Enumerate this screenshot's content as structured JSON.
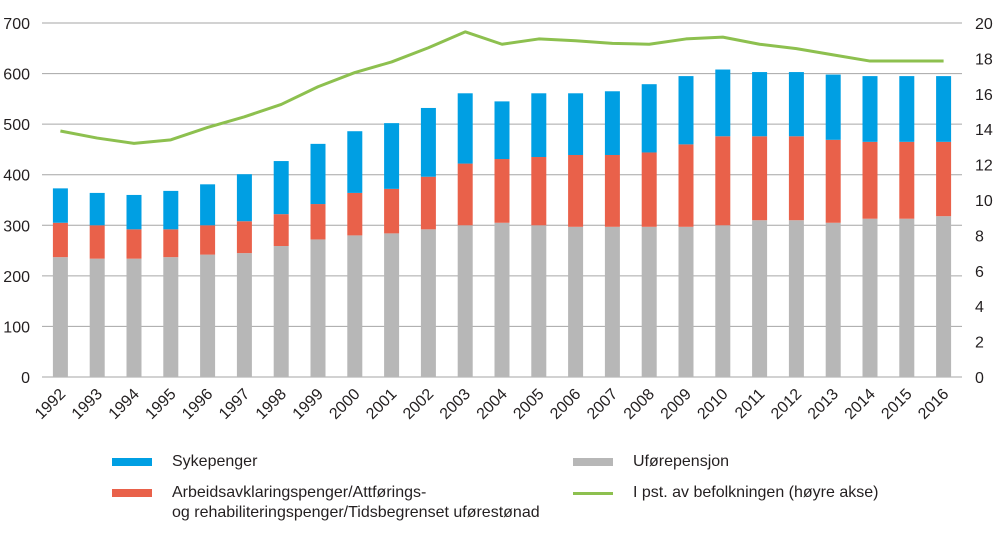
{
  "chart_data": {
    "type": "bar",
    "stacked": true,
    "title": "",
    "xlabel": "",
    "ylabel": "",
    "y2label": "",
    "categories": [
      "1992",
      "1993",
      "1994",
      "1995",
      "1996",
      "1997",
      "1998",
      "1999",
      "2000",
      "2001",
      "2002",
      "2003",
      "2004",
      "2005",
      "2006",
      "2007",
      "2008",
      "2009",
      "2010",
      "2011",
      "2012",
      "2013",
      "2014",
      "2015",
      "2016"
    ],
    "ylim": [
      0,
      700
    ],
    "yticks": [
      0,
      100,
      200,
      300,
      400,
      500,
      600,
      700
    ],
    "y2lim": [
      0,
      20
    ],
    "y2ticks": [
      0,
      2,
      4,
      6,
      8,
      10,
      12,
      14,
      16,
      18,
      20
    ],
    "grid": true,
    "legend_position": "bottom",
    "series": [
      {
        "name": "Uførepensjon",
        "type": "bar",
        "axis": "left",
        "color": "#b7b7b7",
        "values": [
          237,
          234,
          234,
          237,
          242,
          245,
          259,
          272,
          280,
          284,
          292,
          300,
          305,
          300,
          297,
          297,
          297,
          297,
          300,
          310,
          310,
          305,
          313,
          313,
          318
        ]
      },
      {
        "name": "Arbeidsavklaringspenger/Attførings- og rehabiliteringspenger/Tidsbegrenset uførestønad",
        "type": "bar",
        "axis": "left",
        "color": "#e9614a",
        "values": [
          68,
          66,
          58,
          55,
          58,
          63,
          63,
          70,
          84,
          88,
          104,
          122,
          126,
          135,
          142,
          142,
          147,
          163,
          176,
          166,
          166,
          164,
          152,
          152,
          147
        ]
      },
      {
        "name": "Sykepenger",
        "type": "bar",
        "axis": "left",
        "color": "#009fe3",
        "values": [
          68,
          64,
          68,
          76,
          81,
          93,
          105,
          119,
          122,
          130,
          136,
          139,
          114,
          126,
          122,
          126,
          135,
          135,
          132,
          127,
          127,
          129,
          130,
          130,
          130
        ]
      },
      {
        "name": "I pst. av befolkningen (høyre akse)",
        "type": "line",
        "axis": "right",
        "color": "#8dc04f",
        "values": [
          13.9,
          13.5,
          13.2,
          13.4,
          14.1,
          14.7,
          15.4,
          16.4,
          17.2,
          17.8,
          18.6,
          19.5,
          18.8,
          19.1,
          19.0,
          18.85,
          18.8,
          19.1,
          19.2,
          18.8,
          18.55,
          18.2,
          17.85,
          17.85,
          17.85
        ]
      }
    ]
  },
  "legend": {
    "items": [
      {
        "label": "Sykepenger",
        "color": "#009fe3",
        "kind": "bar"
      },
      {
        "label_line1": "Arbeidsavklaringspenger/Attførings-",
        "label_line2": "og rehabiliteringspenger/Tidsbegrenset uførestønad",
        "color": "#e9614a",
        "kind": "bar"
      },
      {
        "label": "Uførepensjon",
        "color": "#b7b7b7",
        "kind": "bar"
      },
      {
        "label": "I pst. av befolkningen (høyre akse)",
        "color": "#8dc04f",
        "kind": "line"
      }
    ]
  }
}
